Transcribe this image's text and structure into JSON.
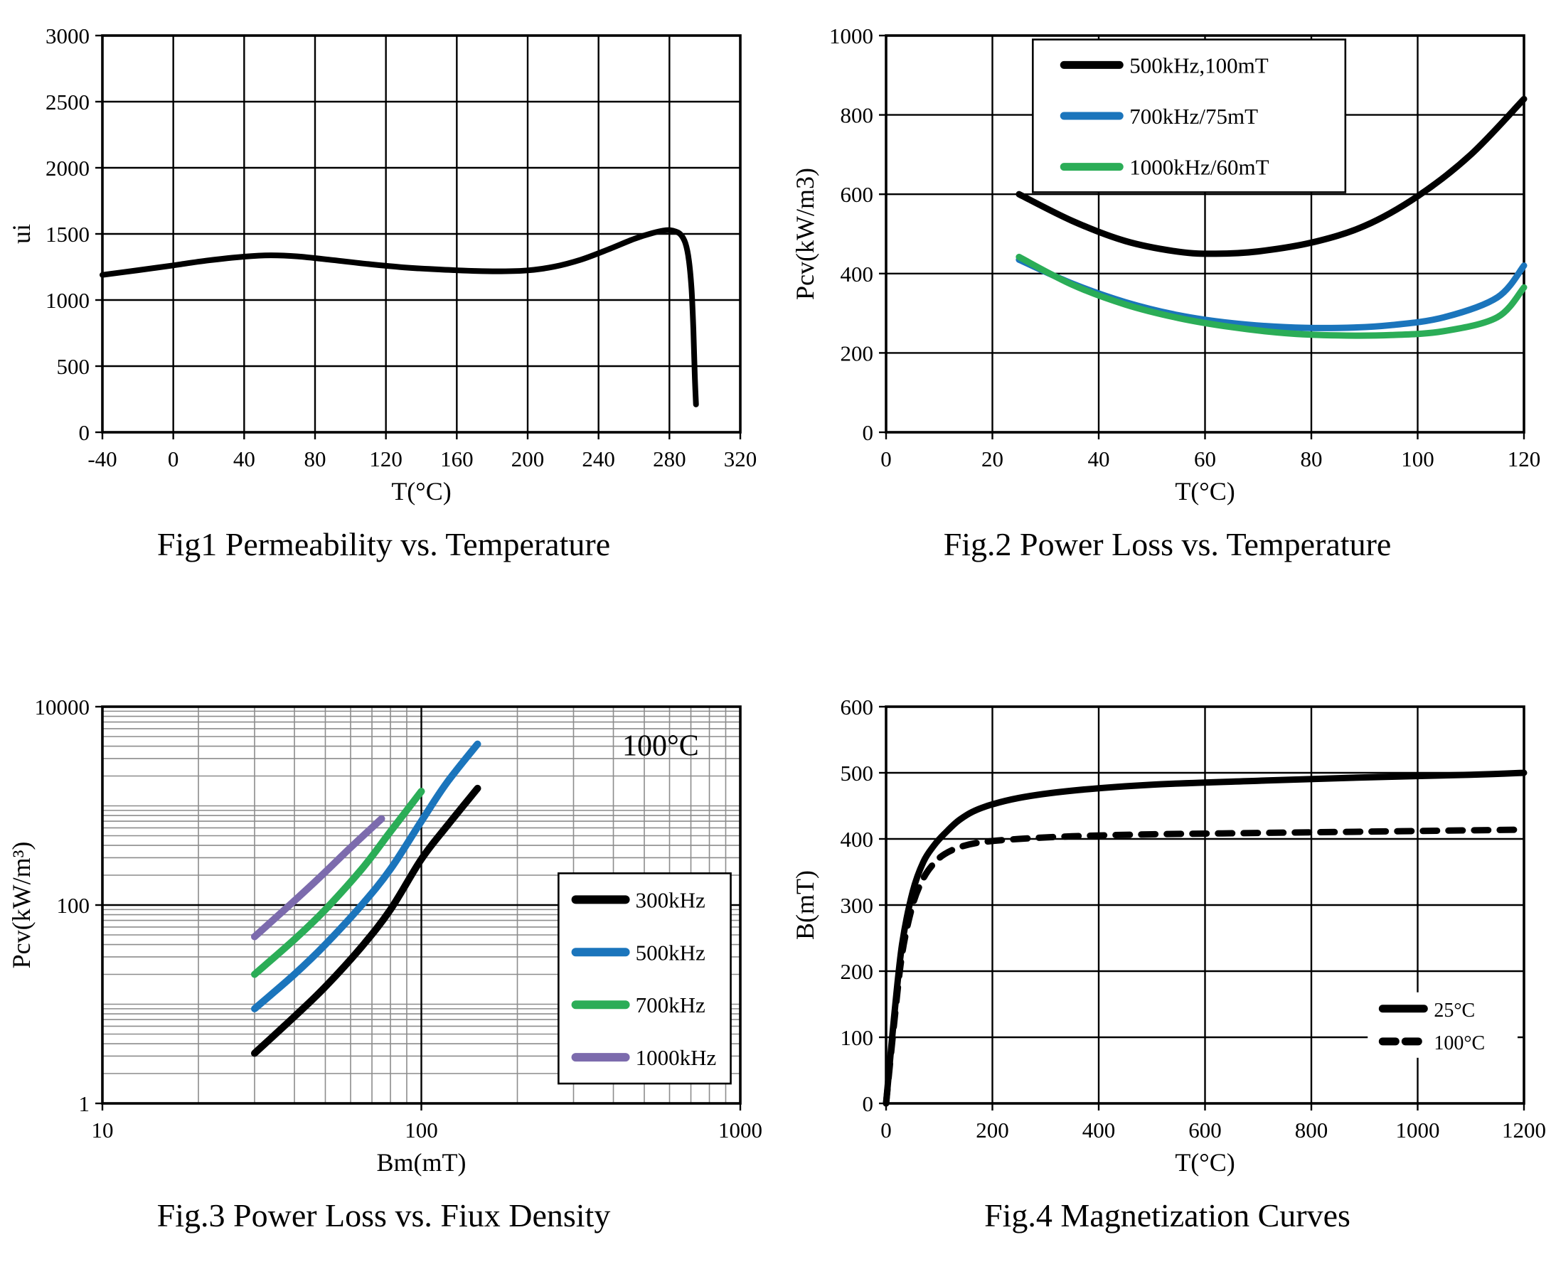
{
  "page": {
    "background": "#ffffff"
  },
  "figures": [
    {
      "id": "fig1",
      "caption": "Fig1 Permeability vs. Temperature"
    },
    {
      "id": "fig2",
      "caption": "Fig.2 Power Loss vs. Temperature"
    },
    {
      "id": "fig3",
      "caption": "Fig.3 Power Loss vs. Fiux Density"
    },
    {
      "id": "fig4",
      "caption": "Fig.4 Magnetization Curves"
    }
  ],
  "colors": {
    "black": "#000000",
    "blue": "#1B75BC",
    "green": "#2BAD57",
    "purple": "#7C6BAD",
    "grid_major": "#000000",
    "grid_minor": "#8c8c8c"
  },
  "chart_data": [
    {
      "type": "line",
      "title": "",
      "xlabel": "T(°C)",
      "ylabel": "ui",
      "xscale": "linear",
      "yscale": "linear",
      "xlim": [
        -40,
        320
      ],
      "ylim": [
        0,
        3000
      ],
      "xticks": [
        -40,
        0,
        40,
        80,
        120,
        160,
        200,
        240,
        280,
        320
      ],
      "yticks": [
        0,
        500,
        1000,
        1500,
        2000,
        2500,
        3000
      ],
      "grid": true,
      "legend": null,
      "annotations": [],
      "series": [
        {
          "name": "ui",
          "color": "#000000",
          "width": 8,
          "dash": null,
          "x": [
            -40,
            -20,
            0,
            20,
            40,
            55,
            70,
            90,
            110,
            130,
            150,
            170,
            185,
            200,
            215,
            230,
            245,
            260,
            270,
            278,
            282,
            286,
            289,
            291,
            292.5,
            293.5,
            294.3,
            295
          ],
          "y": [
            1190,
            1225,
            1262,
            1300,
            1328,
            1338,
            1330,
            1302,
            1272,
            1247,
            1231,
            1220,
            1217,
            1224,
            1252,
            1305,
            1380,
            1462,
            1505,
            1528,
            1524,
            1500,
            1430,
            1300,
            1080,
            780,
            430,
            210
          ]
        }
      ]
    },
    {
      "type": "line",
      "title": "",
      "xlabel": "T(°C)",
      "ylabel": "Pcv(kW/m3)",
      "xscale": "linear",
      "yscale": "linear",
      "xlim": [
        0,
        120
      ],
      "ylim": [
        0,
        1000
      ],
      "xticks": [
        0,
        20,
        40,
        60,
        80,
        100,
        120
      ],
      "yticks": [
        0,
        200,
        400,
        600,
        800,
        1000
      ],
      "grid": true,
      "legend": {
        "fx": 0.23,
        "fy": 0.01,
        "fw": 0.49,
        "fh": 0.385,
        "border": true,
        "font": 31,
        "sample": 78
      },
      "annotations": [],
      "series": [
        {
          "name": "500kHz,100mT",
          "color": "#000000",
          "width": 9,
          "dash": null,
          "x": [
            25,
            35,
            45,
            55,
            62,
            70,
            80,
            90,
            100,
            110,
            120
          ],
          "y": [
            600,
            533,
            482,
            455,
            450,
            456,
            478,
            520,
            595,
            700,
            840
          ]
        },
        {
          "name": "700kHz/75mT",
          "color": "#1B75BC",
          "width": 9,
          "dash": null,
          "x": [
            25,
            35,
            45,
            55,
            65,
            75,
            85,
            95,
            105,
            115,
            120
          ],
          "y": [
            435,
            375,
            328,
            295,
            275,
            265,
            263,
            270,
            290,
            340,
            420
          ]
        },
        {
          "name": "1000kHz/60mT",
          "color": "#2BAD57",
          "width": 9,
          "dash": null,
          "x": [
            25,
            35,
            45,
            55,
            65,
            75,
            85,
            95,
            105,
            115,
            120
          ],
          "y": [
            442,
            372,
            322,
            288,
            265,
            250,
            244,
            245,
            255,
            290,
            365
          ]
        }
      ]
    },
    {
      "type": "line",
      "title": "",
      "xlabel": "Bm(mT)",
      "ylabel": "Pcv(kW/m³)",
      "xscale": "log",
      "yscale": "log",
      "xlim": [
        10,
        1000
      ],
      "ylim": [
        1,
        10000
      ],
      "xticks": [
        10,
        100,
        1000
      ],
      "yticks": [
        1,
        100,
        10000
      ],
      "grid": true,
      "minor_grid": true,
      "legend": {
        "fx": 0.715,
        "fy": 0.42,
        "fw": 0.27,
        "fh": 0.53,
        "border": true,
        "font": 31,
        "sample": 70
      },
      "annotations": [
        {
          "text": "100°C",
          "fx": 0.875,
          "fy": 0.085,
          "size": 42
        }
      ],
      "series": [
        {
          "name": "300kHz",
          "color": "#000000",
          "width": 10,
          "dash": null,
          "x": [
            30,
            40,
            50,
            65,
            80,
            100,
            120,
            150
          ],
          "y": [
            3.2,
            7.5,
            15,
            38,
            90,
            290,
            620,
            1500
          ]
        },
        {
          "name": "500kHz",
          "color": "#1B75BC",
          "width": 10,
          "dash": null,
          "x": [
            30,
            40,
            50,
            65,
            80,
            100,
            120,
            150
          ],
          "y": [
            9,
            20,
            40,
            100,
            230,
            700,
            1700,
            4200
          ]
        },
        {
          "name": "700kHz",
          "color": "#2BAD57",
          "width": 10,
          "dash": null,
          "x": [
            30,
            40,
            50,
            65,
            80,
            100
          ],
          "y": [
            20,
            45,
            90,
            230,
            550,
            1400
          ]
        },
        {
          "name": "1000kHz",
          "color": "#7C6BAD",
          "width": 10,
          "dash": null,
          "x": [
            30,
            38,
            48,
            60,
            75
          ],
          "y": [
            48,
            95,
            190,
            380,
            740
          ]
        }
      ]
    },
    {
      "type": "line",
      "title": "",
      "xlabel": "T(°C)",
      "ylabel": "B(mT)",
      "xscale": "linear",
      "yscale": "linear",
      "xlim": [
        0,
        1200
      ],
      "ylim": [
        0,
        600
      ],
      "xticks": [
        0,
        200,
        400,
        600,
        800,
        1000,
        1200
      ],
      "yticks": [
        0,
        100,
        200,
        300,
        400,
        500,
        600
      ],
      "grid": true,
      "legend": {
        "fx": 0.755,
        "fy": 0.72,
        "fw": 0.235,
        "fh": 0.165,
        "border": false,
        "font": 28,
        "sample": 58
      },
      "annotations": [],
      "series": [
        {
          "name": "25°C",
          "color": "#000000",
          "width": 9,
          "dash": null,
          "x": [
            0,
            15,
            30,
            50,
            70,
            90,
            110,
            140,
            180,
            250,
            350,
            500,
            700,
            900,
            1100,
            1200
          ],
          "y": [
            0,
            130,
            240,
            320,
            365,
            390,
            408,
            430,
            447,
            462,
            473,
            482,
            488,
            493,
            497,
            500
          ]
        },
        {
          "name": "100°C",
          "color": "#000000",
          "width": 9,
          "dash": "20 16",
          "x": [
            0,
            15,
            30,
            50,
            70,
            90,
            110,
            140,
            180,
            250,
            350,
            500,
            700,
            900,
            1100,
            1200
          ],
          "y": [
            0,
            120,
            225,
            300,
            340,
            363,
            377,
            388,
            395,
            400,
            404,
            407,
            409,
            411,
            413,
            414
          ]
        }
      ]
    }
  ]
}
